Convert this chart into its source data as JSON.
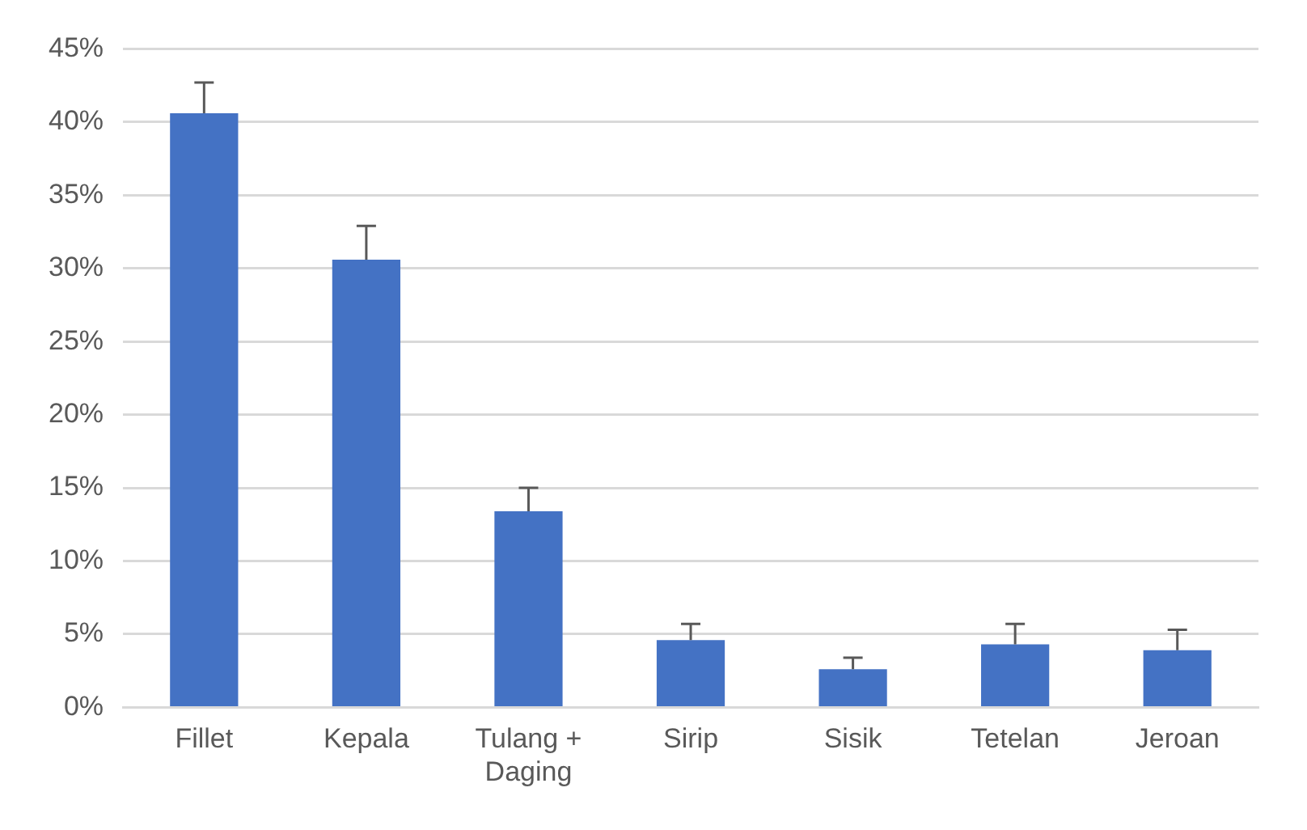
{
  "chart_data": {
    "type": "bar",
    "categories": [
      "Fillet",
      "Kepala",
      "Tulang + Daging",
      "Sirip",
      "Sisik",
      "Tetelan",
      "Jeroan"
    ],
    "values": [
      40.6,
      30.6,
      13.4,
      4.6,
      2.6,
      4.3,
      3.9
    ],
    "errors": [
      [
        40.6,
        42.7
      ],
      [
        30.6,
        32.9
      ],
      [
        13.4,
        15.0
      ],
      [
        4.6,
        5.7
      ],
      [
        2.6,
        3.4
      ],
      [
        4.3,
        5.7
      ],
      [
        3.9,
        5.3
      ]
    ],
    "color": "#4472c4",
    "ylim": [
      0,
      45
    ],
    "yticks": [
      {
        "value": 0,
        "label": "0%"
      },
      {
        "value": 5,
        "label": "5%"
      },
      {
        "value": 10,
        "label": "10%"
      },
      {
        "value": 15,
        "label": "15%"
      },
      {
        "value": 20,
        "label": "20%"
      },
      {
        "value": 25,
        "label": "25%"
      },
      {
        "value": 30,
        "label": "30%"
      },
      {
        "value": 35,
        "label": "35%"
      },
      {
        "value": 40,
        "label": "40%"
      },
      {
        "value": 45,
        "label": "45%"
      }
    ],
    "grid": "y",
    "legend": false
  }
}
